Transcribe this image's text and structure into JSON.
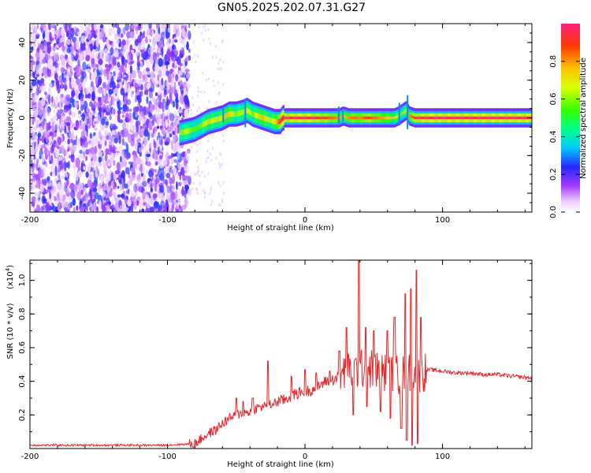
{
  "title": "GN05.2025.202.07.31.G27",
  "chart_data": [
    {
      "type": "heatmap",
      "xlabel": "Height of straight line (km)",
      "ylabel": "Frequency (Hz)",
      "xlim": [
        -200,
        165
      ],
      "ylim": [
        -50,
        50
      ],
      "x_ticks": [
        "-200",
        "-100",
        "0",
        "100"
      ],
      "y_ticks": [
        "-40",
        "-20",
        "0",
        "20",
        "40"
      ],
      "colorbar": {
        "label": "Normalized spectral amplitude",
        "ticks": [
          "0.0",
          "0.2",
          "0.4",
          "0.6",
          "0.8"
        ],
        "range": [
          0,
          1
        ]
      },
      "noise_region_x": [
        -200,
        -84
      ],
      "ridge": {
        "x": [
          -91,
          -85,
          -80,
          -75,
          -70,
          -65,
          -60,
          -55,
          -50,
          -45,
          -42,
          -38,
          -34,
          -30,
          -26,
          -22,
          -18,
          -16,
          -12,
          -6,
          0,
          10,
          20,
          25,
          28,
          32,
          36,
          40,
          45,
          50,
          55,
          60,
          65,
          68,
          70,
          72,
          74,
          76,
          80,
          90,
          100,
          120,
          140,
          165
        ],
        "freq": [
          -8,
          -7,
          -6,
          -4,
          -2,
          -1,
          0,
          2,
          2,
          3,
          4,
          2,
          1,
          0,
          -1,
          -2,
          -2,
          0,
          0,
          0,
          0,
          0,
          0,
          0,
          1,
          0,
          0,
          0,
          0,
          0,
          0,
          0,
          0,
          1,
          2,
          3,
          4,
          1,
          0,
          0,
          0,
          0,
          0,
          0
        ],
        "amplitude": [
          0.6,
          0.65,
          0.55,
          0.6,
          0.7,
          0.65,
          0.7,
          0.75,
          0.6,
          0.65,
          0.7,
          0.6,
          0.7,
          0.75,
          0.65,
          0.7,
          0.9,
          0.95,
          0.9,
          0.95,
          0.95,
          0.9,
          0.85,
          0.8,
          0.75,
          0.8,
          0.85,
          0.8,
          0.9,
          0.85,
          0.8,
          0.75,
          0.7,
          0.65,
          0.6,
          0.65,
          0.7,
          0.8,
          0.9,
          0.95,
          0.95,
          0.95,
          0.95,
          0.95
        ]
      }
    },
    {
      "type": "line",
      "xlabel": "Height of straight line (km)",
      "ylabel": "SNR (10 * v/v)",
      "y_multiplier": "(x10",
      "y_multiplier_exp": "4",
      "y_multiplier_close": ")",
      "xlim": [
        -200,
        165
      ],
      "ylim": [
        0,
        1.12
      ],
      "x_ticks": [
        "-200",
        "-100",
        "0",
        "100"
      ],
      "y_ticks": [
        "0.2",
        "0.4",
        "0.6",
        "0.8",
        "1.0"
      ],
      "series": [
        {
          "color": "#e8262a",
          "x": [
            -200,
            -150,
            -120,
            -100,
            -90,
            -80,
            -75,
            -70,
            -65,
            -60,
            -55,
            -50,
            -45,
            -40,
            -35,
            -30,
            -28,
            -25,
            -20,
            -15,
            -12,
            -10,
            -5,
            0,
            5,
            10,
            15,
            20,
            25,
            30,
            35,
            40,
            45,
            50,
            55,
            60,
            65,
            70,
            75,
            80,
            85,
            88,
            90,
            100,
            110,
            120,
            130,
            140,
            150,
            165
          ],
          "y": [
            0.02,
            0.02,
            0.02,
            0.02,
            0.025,
            0.03,
            0.06,
            0.09,
            0.11,
            0.15,
            0.18,
            0.2,
            0.21,
            0.22,
            0.24,
            0.25,
            0.27,
            0.26,
            0.28,
            0.29,
            0.3,
            0.31,
            0.33,
            0.34,
            0.35,
            0.37,
            0.4,
            0.41,
            0.43,
            0.45,
            0.46,
            0.47,
            0.48,
            0.47,
            0.46,
            0.45,
            0.44,
            0.44,
            0.45,
            0.44,
            0.45,
            0.46,
            0.47,
            0.46,
            0.45,
            0.45,
            0.44,
            0.44,
            0.43,
            0.42
          ],
          "spikes": [
            {
              "x": -50,
              "y": 0.3
            },
            {
              "x": -45,
              "y": 0.28
            },
            {
              "x": -38,
              "y": 0.3
            },
            {
              "x": -27,
              "y": 0.52
            },
            {
              "x": -10,
              "y": 0.43
            },
            {
              "x": 0,
              "y": 0.47
            },
            {
              "x": 8,
              "y": 0.45
            },
            {
              "x": 18,
              "y": 0.46
            },
            {
              "x": 25,
              "y": 0.58
            },
            {
              "x": 30,
              "y": 0.72
            },
            {
              "x": 35,
              "y": 0.68
            },
            {
              "x": 39,
              "y": 1.12
            },
            {
              "x": 44,
              "y": 0.72
            },
            {
              "x": 50,
              "y": 0.7
            },
            {
              "x": 55,
              "y": 0.62
            },
            {
              "x": 60,
              "y": 0.7
            },
            {
              "x": 65,
              "y": 0.78
            },
            {
              "x": 70,
              "y": 0.72
            },
            {
              "x": 73,
              "y": 0.92
            },
            {
              "x": 77,
              "y": 0.95
            },
            {
              "x": 81,
              "y": 1.06
            },
            {
              "x": 84,
              "y": 0.78
            }
          ],
          "dips": [
            {
              "x": 35,
              "y": 0.2
            },
            {
              "x": 45,
              "y": 0.25
            },
            {
              "x": 55,
              "y": 0.22
            },
            {
              "x": 62,
              "y": 0.18
            },
            {
              "x": 70,
              "y": 0.12
            },
            {
              "x": 74,
              "y": 0.05
            },
            {
              "x": 78,
              "y": 0.02
            },
            {
              "x": 82,
              "y": 0.03
            }
          ]
        }
      ]
    }
  ]
}
